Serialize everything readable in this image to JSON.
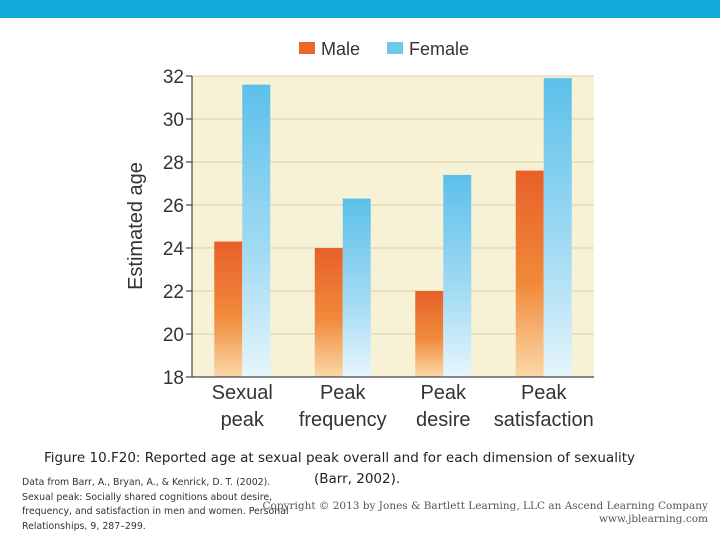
{
  "chart_data": {
    "type": "bar",
    "categories": [
      [
        "Sexual",
        "peak"
      ],
      [
        "Peak",
        "frequency"
      ],
      [
        "Peak",
        "desire"
      ],
      [
        "Peak",
        "satisfaction"
      ]
    ],
    "series": [
      {
        "name": "Male",
        "values": [
          24.3,
          24.0,
          22.0,
          27.6
        ],
        "color": "#e8682a"
      },
      {
        "name": "Female",
        "values": [
          31.6,
          26.3,
          27.4,
          31.9
        ],
        "color": "#6ec6ec"
      }
    ],
    "ylabel": "Estimated age",
    "ylim": [
      18,
      32
    ],
    "yticks": [
      18,
      20,
      22,
      24,
      26,
      28,
      30,
      32
    ],
    "legend": "top",
    "background": "#f7f2d6"
  },
  "caption": {
    "line1": "Figure 10.F20: Reported age at sexual peak overall and for each dimension of sexuality",
    "line2": "(Barr, 2002)."
  },
  "source": {
    "lines": [
      "Data from Barr, A., Bryan, A., & Kenrick, D. T. (2002).",
      "Sexual peak: Socially shared cognitions about desire,",
      "frequency, and satisfaction in men and women.  Personal",
      "Relationships, 9, 287–299."
    ]
  },
  "copyright": {
    "line1": "Copyright © 2013 by Jones & Bartlett Learning, LLC an Ascend Learning Company",
    "line2": "www.jblearning.com"
  }
}
